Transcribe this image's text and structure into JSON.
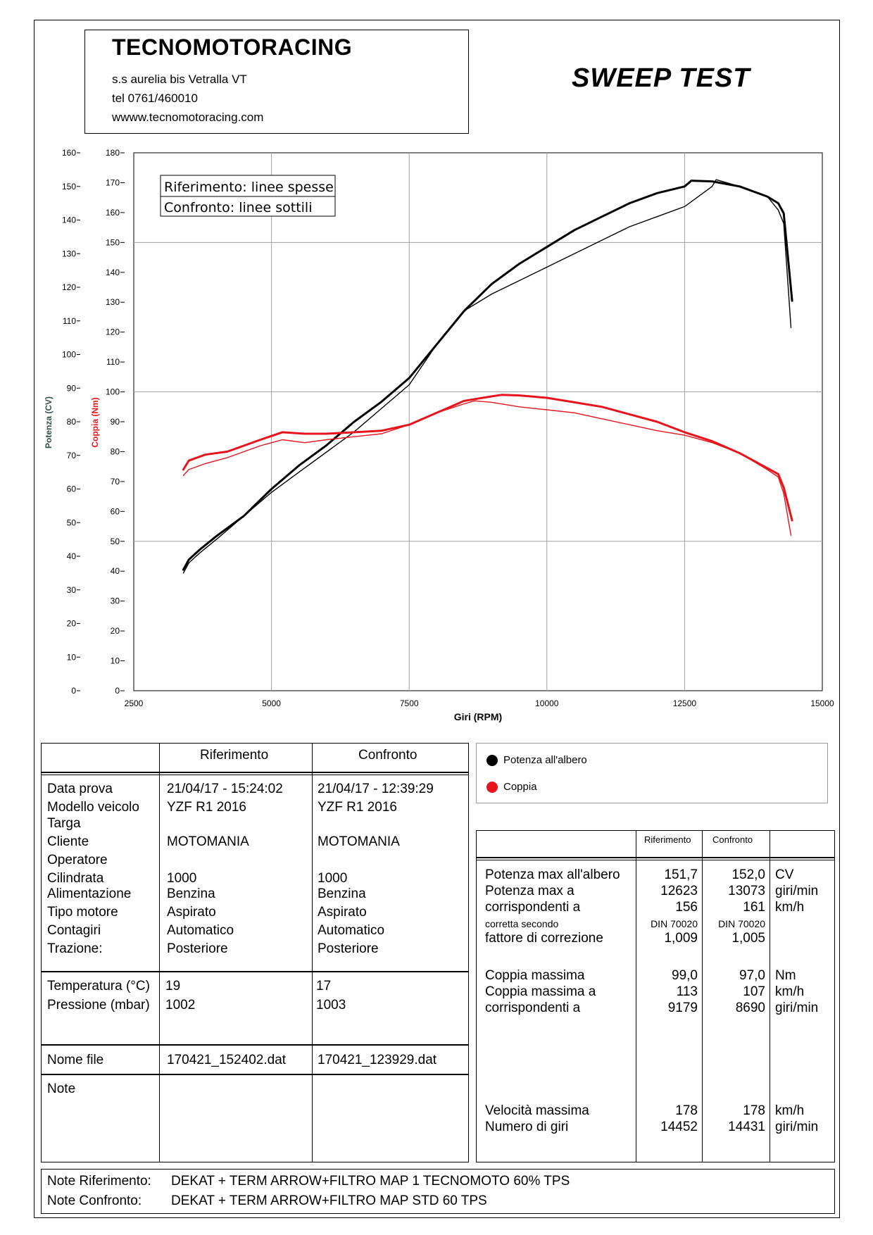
{
  "header": {
    "company": "TECNOMOTORACING",
    "address": "s.s aurelia bis  Vetralla  VT",
    "phone": "tel 0761/460010",
    "website": "wwww.tecnomotoracing.com",
    "test_title": "SWEEP TEST"
  },
  "chart_box_legend": {
    "reference": "Riferimento: linee spesse",
    "comparison": "Confronto: linee sottili"
  },
  "chart_data": {
    "type": "line",
    "xlabel": "Giri (RPM)",
    "ylabel_power": "Potenza (CV)",
    "ylabel_torque": "Coppia (Nm)",
    "xlim": [
      2500,
      15000
    ],
    "xticks": [
      2500,
      5000,
      7500,
      10000,
      12500,
      15000
    ],
    "ylim_power": [
      0,
      160
    ],
    "yticks_power": [
      0,
      10,
      20,
      30,
      40,
      50,
      60,
      70,
      80,
      90,
      100,
      110,
      120,
      130,
      140,
      150,
      160
    ],
    "ylim_torque": [
      0,
      180
    ],
    "yticks_torque": [
      0,
      10,
      20,
      30,
      40,
      50,
      60,
      70,
      80,
      90,
      100,
      110,
      120,
      130,
      140,
      150,
      160,
      170,
      180
    ],
    "grid": true,
    "colors": {
      "power": "#000000",
      "torque": "#e8141c"
    },
    "series": [
      {
        "name": "Potenza all'albero",
        "variant": "Riferimento",
        "axis": "power",
        "color": "#000000",
        "thick": true,
        "x": [
          3400,
          3500,
          3700,
          4000,
          4500,
          5000,
          5500,
          6000,
          6500,
          7000,
          7500,
          8000,
          8500,
          9000,
          9500,
          10000,
          10500,
          11000,
          11500,
          12000,
          12500,
          12623,
          13000,
          13500,
          14000,
          14200,
          14300,
          14452
        ],
        "y": [
          36,
          39,
          42,
          46,
          52,
          60,
          67,
          73,
          80,
          86,
          93,
          103,
          113,
          121,
          127,
          132,
          137,
          141,
          145,
          148,
          150,
          151.7,
          151.5,
          150,
          147,
          145,
          142,
          116
        ]
      },
      {
        "name": "Potenza all'albero",
        "variant": "Confronto",
        "axis": "power",
        "color": "#000000",
        "thick": false,
        "x": [
          3400,
          3500,
          3700,
          4000,
          4500,
          5000,
          5500,
          6000,
          6500,
          7000,
          7500,
          8000,
          8500,
          9000,
          9500,
          10000,
          10500,
          11000,
          11500,
          12000,
          12500,
          13000,
          13073,
          13500,
          14000,
          14200,
          14300,
          14431
        ],
        "y": [
          35,
          38,
          41,
          45,
          52,
          59,
          65,
          71,
          77,
          84,
          91,
          103,
          113,
          118,
          122,
          126,
          130,
          134,
          138,
          141,
          144,
          150,
          152.0,
          150,
          147,
          143,
          139,
          108
        ]
      },
      {
        "name": "Coppia",
        "variant": "Riferimento",
        "axis": "torque",
        "color": "#e8141c",
        "thick": true,
        "x": [
          3400,
          3500,
          3800,
          4200,
          4800,
          5200,
          5600,
          6000,
          6500,
          7000,
          7500,
          8000,
          8500,
          9000,
          9179,
          9500,
          10000,
          10500,
          11000,
          11500,
          12000,
          12500,
          13000,
          13500,
          14000,
          14200,
          14300,
          14452
        ],
        "y": [
          74,
          77,
          79,
          80,
          84,
          86.5,
          86,
          86,
          86.5,
          87,
          89,
          93,
          97,
          98.5,
          99,
          98.8,
          98,
          96.5,
          95,
          92.5,
          90,
          86.5,
          83.5,
          79.5,
          74.5,
          72.5,
          68,
          57
        ]
      },
      {
        "name": "Coppia",
        "variant": "Confronto",
        "axis": "torque",
        "color": "#e8141c",
        "thick": false,
        "x": [
          3400,
          3500,
          3800,
          4200,
          4800,
          5200,
          5600,
          6000,
          6500,
          7000,
          7500,
          8000,
          8500,
          8690,
          9000,
          9500,
          10000,
          10500,
          11000,
          11500,
          12000,
          12500,
          13000,
          13500,
          14000,
          14200,
          14300,
          14431
        ],
        "y": [
          72,
          74,
          76,
          78,
          82,
          84,
          83,
          84,
          85,
          86,
          89,
          93,
          96,
          97,
          96.5,
          95,
          94,
          93,
          91,
          89,
          87,
          85.5,
          83,
          79.5,
          74,
          71.5,
          66,
          52
        ]
      }
    ]
  },
  "series_legend": [
    {
      "label": "Potenza all'albero",
      "color": "#000000"
    },
    {
      "label": "Coppia",
      "color": "#e8141c"
    }
  ],
  "info_table": {
    "col_reference": "Riferimento",
    "col_comparison": "Confronto",
    "rows": [
      {
        "label": "Data prova",
        "ref": "21/04/17 - 15:24:02",
        "cmp": "21/04/17 - 12:39:29"
      },
      {
        "label": "Modello veicolo",
        "ref": "YZF R1 2016",
        "cmp": "YZF R1 2016"
      },
      {
        "label": "Targa",
        "ref": "",
        "cmp": ""
      },
      {
        "label": "Cliente",
        "ref": "MOTOMANIA",
        "cmp": "MOTOMANIA"
      },
      {
        "label": "Operatore",
        "ref": "",
        "cmp": ""
      },
      {
        "label": "Cilindrata",
        "ref": "1000",
        "cmp": "1000"
      },
      {
        "label": "Alimentazione",
        "ref": "Benzina",
        "cmp": "Benzina"
      },
      {
        "label": "Tipo motore",
        "ref": "Aspirato",
        "cmp": "Aspirato"
      },
      {
        "label": "Contagiri",
        "ref": "Automatico",
        "cmp": "Automatico"
      },
      {
        "label": "Trazione:",
        "ref": "Posteriore",
        "cmp": "Posteriore"
      }
    ],
    "env_rows": [
      {
        "label": "Temperatura (°C)",
        "ref": "19",
        "cmp": "17"
      },
      {
        "label": "Pressione (mbar)",
        "ref": "1002",
        "cmp": "1003"
      }
    ],
    "file_row": {
      "label": "Nome file",
      "ref": "170421_152402.dat",
      "cmp": "170421_123929.dat"
    },
    "note_label": "Note"
  },
  "results_table": {
    "col_reference": "Riferimento",
    "col_comparison": "Confronto",
    "power_max": {
      "label": "Potenza max all'albero",
      "ref": "151,7",
      "cmp": "152,0",
      "unit": "CV"
    },
    "power_rpm": {
      "label": "Potenza max a",
      "ref": "12623",
      "cmp": "13073",
      "unit": "giri/min"
    },
    "power_speed": {
      "label": "corrispondenti a",
      "ref": "156",
      "cmp": "161",
      "unit": "km/h"
    },
    "correction_norm": {
      "label": "corretta secondo",
      "ref": "DIN 70020",
      "cmp": "DIN 70020"
    },
    "correction_factor": {
      "label": "fattore di correzione",
      "ref": "1,009",
      "cmp": "1,005"
    },
    "torque_max": {
      "label": "Coppia massima",
      "ref": "99,0",
      "cmp": "97,0",
      "unit": "Nm"
    },
    "torque_speed": {
      "label": "Coppia massima a",
      "ref": "113",
      "cmp": "107",
      "unit": "km/h"
    },
    "torque_rpm": {
      "label": "corrispondenti a",
      "ref": "9179",
      "cmp": "8690",
      "unit": "giri/min"
    },
    "max_speed": {
      "label": "Velocità massima",
      "ref": "178",
      "cmp": "178",
      "unit": "km/h"
    },
    "max_speed_rpm": {
      "label": "Numero di giri",
      "ref": "14452",
      "cmp": "14431",
      "unit": "giri/min"
    }
  },
  "notes": {
    "reference_label": "Note Riferimento:",
    "reference_text": "DEKAT + TERM ARROW+FILTRO MAP 1 TECNOMOTO 60% TPS",
    "comparison_label": "Note Confronto:",
    "comparison_text": "DEKAT + TERM ARROW+FILTRO MAP STD 60 TPS"
  }
}
